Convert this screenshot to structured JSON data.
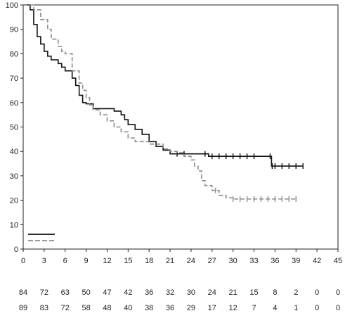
{
  "chart_data": {
    "type": "line",
    "subtype": "kaplan-meier",
    "title": "",
    "xlabel": "",
    "ylabel": "",
    "xlim": [
      0,
      45
    ],
    "ylim": [
      0,
      100
    ],
    "x_ticks": [
      0,
      3,
      6,
      9,
      12,
      15,
      18,
      21,
      24,
      27,
      30,
      33,
      36,
      39,
      42,
      45
    ],
    "y_ticks": [
      0,
      10,
      20,
      30,
      40,
      50,
      60,
      70,
      80,
      90,
      100
    ],
    "grid": false,
    "legend_position": "bottom-left",
    "series": [
      {
        "color": "#111111",
        "dash": "solid",
        "x": [
          0,
          1.0,
          1.5,
          2.0,
          2.5,
          3.0,
          3.5,
          4.0,
          5.0,
          5.5,
          6.0,
          7.0,
          7.5,
          8.0,
          8.5,
          9.0,
          10.0,
          11.0,
          12.0,
          13.0,
          14.0,
          14.5,
          15.0,
          16.0,
          17.0,
          18.0,
          19.0,
          20.0,
          21.0,
          26.5,
          35.5,
          40.0
        ],
        "values": [
          100,
          98,
          92,
          87,
          84,
          81,
          79,
          77.5,
          76,
          74.5,
          73,
          70,
          67,
          63,
          60,
          59.5,
          57.5,
          57.5,
          57.5,
          56.5,
          55,
          53,
          51,
          49,
          47,
          44,
          42,
          40.5,
          39,
          38,
          34,
          34
        ],
        "censored_x": [
          22,
          23,
          26,
          27,
          28,
          29,
          30,
          31,
          32,
          33,
          35.3,
          35.6,
          36,
          37,
          38,
          39,
          40
        ]
      },
      {
        "color": "#8c8c8c",
        "dash": "dashed",
        "x": [
          0,
          1.5,
          2.5,
          3.5,
          4.0,
          5.0,
          5.5,
          6.0,
          7.0,
          8.0,
          8.5,
          9.0,
          9.5,
          10.0,
          11.0,
          12.0,
          13.0,
          14.0,
          15.0,
          16.0,
          18.0,
          20.0,
          21.0,
          22.0,
          23.0,
          24.0,
          24.5,
          25.0,
          25.5,
          26.0,
          27.0,
          28.0,
          29.0,
          30.0,
          39.0
        ],
        "values": [
          100,
          98,
          94,
          90,
          86,
          83,
          81,
          80,
          73,
          68,
          65,
          62,
          59,
          57,
          55,
          52.5,
          50,
          48,
          45.5,
          44,
          43,
          41,
          40,
          39.5,
          38,
          36.5,
          34,
          32,
          28,
          26,
          24,
          22,
          21,
          20.5,
          20.5
        ],
        "censored_x": [
          27.5,
          30,
          31,
          32,
          33,
          34,
          35,
          36,
          37,
          38,
          39
        ]
      }
    ],
    "risk_table": [
      [
        "84",
        "72",
        "63",
        "50",
        "47",
        "42",
        "36",
        "32",
        "30",
        "24",
        "21",
        "15",
        "8",
        "2",
        "0",
        "0"
      ],
      [
        "89",
        "83",
        "72",
        "58",
        "48",
        "40",
        "38",
        "36",
        "29",
        "17",
        "12",
        "7",
        "4",
        "1",
        "0",
        "0"
      ]
    ]
  }
}
